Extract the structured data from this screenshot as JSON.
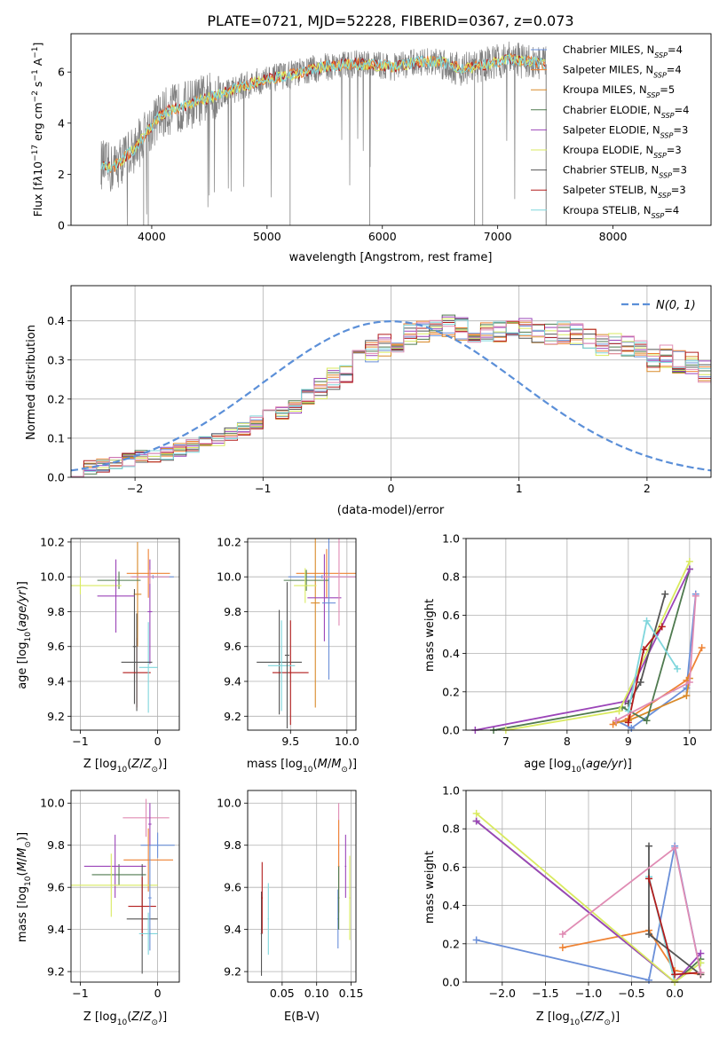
{
  "figure_title": "PLATE=0721, MJD=52228, FIBERID=0367, z=0.073",
  "colors": {
    "Chabrier MILES": "#6a8fd8",
    "Salpeter MILES": "#ee8233",
    "Kroupa MILES": "#d98a2a",
    "Chabrier ELODIE": "#4f7a4f",
    "Salpeter ELODIE": "#9b44b8",
    "Kroupa ELODIE": "#d9ea60",
    "Chabrier STELIB": "#555555",
    "Salpeter STELIB": "#b21d1d",
    "Kroupa STELIB": "#7fd6dc",
    "gray": "#808080",
    "gauss": "#5b8fd8",
    "pink": "#e08cb4"
  },
  "chart_data": [
    {
      "id": "spectrum",
      "type": "line",
      "title": "PLATE=0721, MJD=52228, FIBERID=0367, z=0.073",
      "xlabel": "wavelength [Angstrom, rest frame]",
      "ylabel": "Flux [f_λ 10^-17 erg cm^-2 s^-1 A^-1]",
      "xlim": [
        3300,
        8850
      ],
      "ylim": [
        0,
        7.5
      ],
      "xticks": [
        4000,
        5000,
        6000,
        7000,
        8000
      ],
      "yticks": [
        0,
        2,
        4,
        6
      ],
      "grid": false,
      "legend_position": "right",
      "legend": [
        "Chabrier MILES, N_SSP=4",
        "Salpeter MILES, N_SSP=4",
        "Kroupa MILES, N_SSP=5",
        "Chabrier ELODIE, N_SSP=4",
        "Salpeter ELODIE, N_SSP=3",
        "Kroupa ELODIE, N_SSP=3",
        "Chabrier STELIB, N_SSP=3",
        "Salpeter STELIB, N_SSP=3",
        "Kroupa STELIB, N_SSP=4"
      ],
      "continuum": {
        "x": [
          3560,
          3650,
          3750,
          3850,
          3950,
          4050,
          4150,
          4300,
          4500,
          4700,
          4900,
          5100,
          5300,
          5500,
          5700,
          5900,
          6100,
          6300,
          6500,
          6700,
          6900,
          7100,
          7300,
          7420
        ],
        "y": [
          2.4,
          2.2,
          2.6,
          3.0,
          3.6,
          4.2,
          4.5,
          4.7,
          5.0,
          5.3,
          5.6,
          5.8,
          6.0,
          6.2,
          6.3,
          6.3,
          6.2,
          6.4,
          6.4,
          6.1,
          6.3,
          6.5,
          6.4,
          6.3
        ]
      }
    },
    {
      "id": "residuals",
      "type": "histogram",
      "xlabel": "(data-model)/error",
      "ylabel": "Normed distribution",
      "xlim": [
        -2.5,
        2.5
      ],
      "ylim": [
        0,
        0.49
      ],
      "xticks": [
        -2,
        -1,
        0,
        1,
        2
      ],
      "yticks": [
        0.0,
        0.1,
        0.2,
        0.3,
        0.4
      ],
      "grid": true,
      "legend_position": "top-right",
      "legend": [
        "N(0,1)"
      ],
      "bin_width": 0.1,
      "bin_start": -2.5,
      "base_profile": [
        0.02,
        0.026,
        0.03,
        0.036,
        0.045,
        0.052,
        0.057,
        0.061,
        0.07,
        0.08,
        0.091,
        0.098,
        0.11,
        0.125,
        0.14,
        0.155,
        0.165,
        0.18,
        0.205,
        0.228,
        0.25,
        0.27,
        0.3,
        0.32,
        0.34,
        0.35,
        0.365,
        0.375,
        0.38,
        0.385,
        0.38,
        0.372,
        0.368,
        0.37,
        0.38,
        0.378,
        0.372,
        0.37,
        0.368,
        0.365,
        0.36,
        0.34,
        0.34,
        0.335,
        0.32,
        0.3,
        0.31,
        0.295,
        0.29,
        0.27,
        0.25,
        0.235,
        0.22,
        0.205,
        0.19,
        0.17,
        0.155,
        0.145,
        0.135,
        0.118,
        0.105,
        0.097,
        0.09,
        0.083,
        0.08,
        0.075,
        0.068,
        0.058,
        0.052,
        0.048,
        0.045,
        0.043,
        0.04,
        0.037,
        0.035,
        0.033,
        0.03,
        0.03,
        0.03,
        0.03
      ]
    },
    {
      "id": "age_vs_Z",
      "type": "errorbar",
      "xlabel": "Z [log10(Z/Z⊙)]",
      "ylabel": "age [log10(age/yr)]",
      "xlim": [
        -1.12,
        0.28
      ],
      "ylim": [
        9.12,
        10.22
      ],
      "xticks": [
        -1,
        0
      ],
      "yticks": [
        9.2,
        9.4,
        9.6,
        9.8,
        10.0,
        10.2
      ],
      "grid": true,
      "points": [
        {
          "series": "Chabrier MILES",
          "x": -0.06,
          "y": 10.0,
          "xerr": 0.27,
          "yerr": 0.01
        },
        {
          "series": "Salpeter MILES",
          "x": -0.12,
          "y": 10.02,
          "xerr": 0.28,
          "yerr": 0.14
        },
        {
          "series": "Kroupa MILES",
          "x": -0.26,
          "y": 9.9,
          "xerr": 0.05,
          "yerr": 0.3
        },
        {
          "series": "Chabrier ELODIE",
          "x": -0.5,
          "y": 9.98,
          "xerr": 0.28,
          "yerr": 0.05
        },
        {
          "series": "Salpeter ELODIE",
          "x": -0.1,
          "y": 9.8,
          "xerr": 0.03,
          "yerr": 0.3
        },
        {
          "series": "Kroupa ELODIE",
          "x": -1.0,
          "y": 9.95,
          "xerr": 0.53,
          "yerr": 0.05
        },
        {
          "series": "Chabrier STELIB",
          "x": -0.3,
          "y": 9.6,
          "xerr": 0.02,
          "yerr": 0.33
        },
        {
          "series": "Salpeter STELIB",
          "x": -0.27,
          "y": 9.45,
          "xerr": 0.18,
          "yerr": 0.2
        },
        {
          "series": "Kroupa STELIB",
          "x": -0.12,
          "y": 9.48,
          "xerr": 0.12,
          "yerr": 0.26
        },
        {
          "series": "Salpeter ELODIE",
          "x": -0.54,
          "y": 9.89,
          "xerr": 0.24,
          "yerr": 0.21
        },
        {
          "series": "Chabrier STELIB",
          "x": -0.27,
          "y": 9.51,
          "xerr": 0.2,
          "yerr": 0.28
        },
        {
          "series": "pink",
          "x": -0.1,
          "y": 10.0,
          "xerr": 0.25,
          "yerr": 0.04
        }
      ]
    },
    {
      "id": "age_vs_mass",
      "type": "errorbar",
      "xlabel": "mass [log10(M/M⊙)]",
      "xlim": [
        9.12,
        10.08
      ],
      "ylim": [
        9.12,
        10.22
      ],
      "xticks": [
        9.5,
        10.0
      ],
      "yticks": [
        9.2,
        9.4,
        9.6,
        9.8,
        10.0,
        10.2
      ],
      "grid": true,
      "points": [
        {
          "series": "Chabrier MILES",
          "x": 9.78,
          "y": 10.0,
          "xerr": 0.3,
          "yerr": 0.01
        },
        {
          "series": "Salpeter MILES",
          "x": 9.82,
          "y": 10.02,
          "xerr": 0.27,
          "yerr": 0.14
        },
        {
          "series": "Kroupa MILES",
          "x": 9.72,
          "y": 9.85,
          "xerr": 0.04,
          "yerr": 0.6
        },
        {
          "series": "Chabrier ELODIE",
          "x": 9.64,
          "y": 9.98,
          "xerr": 0.2,
          "yerr": 0.06
        },
        {
          "series": "Salpeter ELODIE",
          "x": 9.8,
          "y": 9.88,
          "xerr": 0.15,
          "yerr": 0.25
        },
        {
          "series": "Kroupa ELODIE",
          "x": 9.63,
          "y": 9.95,
          "xerr": 0.1,
          "yerr": 0.1
        },
        {
          "series": "Chabrier STELIB",
          "x": 9.4,
          "y": 9.51,
          "xerr": 0.2,
          "yerr": 0.3
        },
        {
          "series": "Salpeter STELIB",
          "x": 9.5,
          "y": 9.45,
          "xerr": 0.16,
          "yerr": 0.3
        },
        {
          "series": "Kroupa STELIB",
          "x": 9.42,
          "y": 9.49,
          "xerr": 0.12,
          "yerr": 0.26
        },
        {
          "series": "Chabrier MILES",
          "x": 9.84,
          "y": 9.85,
          "xerr": 0.06,
          "yerr": 0.44
        },
        {
          "series": "pink",
          "x": 9.93,
          "y": 10.0,
          "xerr": 0.15,
          "yerr": 0.28
        },
        {
          "series": "Chabrier STELIB",
          "x": 9.47,
          "y": 9.55,
          "xerr": 0.02,
          "yerr": 0.42
        }
      ]
    },
    {
      "id": "mass_weight_vs_age",
      "type": "line",
      "xlabel": "age [log10(age/yr)]",
      "ylabel": "mass weight",
      "xlim": [
        6.35,
        10.35
      ],
      "ylim": [
        0,
        1.0
      ],
      "xticks": [
        7,
        8,
        9,
        10
      ],
      "yticks": [
        0.0,
        0.2,
        0.4,
        0.6,
        0.8,
        1.0
      ],
      "grid": true,
      "series": [
        {
          "name": "Chabrier MILES",
          "x": [
            8.8,
            9.05,
            9.95,
            10.1
          ],
          "y": [
            0.05,
            0.01,
            0.22,
            0.71
          ]
        },
        {
          "name": "Salpeter MILES",
          "x": [
            8.75,
            9.0,
            9.95,
            10.2
          ],
          "y": [
            0.03,
            0.06,
            0.26,
            0.43
          ]
        },
        {
          "name": "Kroupa MILES",
          "x": [
            8.8,
            9.0,
            9.95,
            10.0
          ],
          "y": [
            0.04,
            0.05,
            0.18,
            0.27
          ]
        },
        {
          "name": "Chabrier ELODIE",
          "x": [
            6.8,
            8.9,
            9.3,
            10.0
          ],
          "y": [
            0.0,
            0.12,
            0.05,
            0.84
          ]
        },
        {
          "name": "Salpeter ELODIE",
          "x": [
            6.5,
            8.95,
            10.0
          ],
          "y": [
            0.0,
            0.15,
            0.84
          ]
        },
        {
          "name": "Kroupa ELODIE",
          "x": [
            7.0,
            8.85,
            10.0
          ],
          "y": [
            0.0,
            0.1,
            0.88
          ]
        },
        {
          "name": "Chabrier STELIB",
          "x": [
            9.0,
            9.2,
            9.6
          ],
          "y": [
            0.14,
            0.25,
            0.71
          ]
        },
        {
          "name": "Salpeter STELIB",
          "x": [
            9.0,
            9.25,
            9.55
          ],
          "y": [
            0.04,
            0.42,
            0.54
          ]
        },
        {
          "name": "Kroupa STELIB",
          "x": [
            9.0,
            9.3,
            9.8
          ],
          "y": [
            0.1,
            0.57,
            0.32
          ]
        },
        {
          "name": "pink",
          "x": [
            8.8,
            10.0,
            10.1
          ],
          "y": [
            0.05,
            0.25,
            0.7
          ]
        }
      ]
    },
    {
      "id": "mass_vs_Z",
      "type": "errorbar",
      "xlabel": "Z [log10(Z/Z⊙)]",
      "ylabel": "mass [log10(M/M⊙)]",
      "xlim": [
        -1.12,
        0.28
      ],
      "ylim": [
        9.15,
        10.06
      ],
      "xticks": [
        -1,
        0
      ],
      "yticks": [
        9.2,
        9.4,
        9.6,
        9.8,
        10.0
      ],
      "grid": true,
      "points": [
        {
          "series": "Chabrier MILES",
          "x": 0.0,
          "y": 9.8,
          "xerr": 0.22,
          "yerr": 0.06
        },
        {
          "series": "Salpeter MILES",
          "x": -0.12,
          "y": 9.73,
          "xerr": 0.32,
          "yerr": 0.15
        },
        {
          "series": "pink",
          "x": -0.15,
          "y": 9.93,
          "xerr": 0.3,
          "yerr": 0.09
        },
        {
          "series": "Chabrier ELODIE",
          "x": -0.5,
          "y": 9.66,
          "xerr": 0.35,
          "yerr": 0.05
        },
        {
          "series": "Salpeter ELODIE",
          "x": -0.55,
          "y": 9.7,
          "xerr": 0.4,
          "yerr": 0.15
        },
        {
          "series": "Kroupa ELODIE",
          "x": -0.6,
          "y": 9.61,
          "xerr": 0.6,
          "yerr": 0.15
        },
        {
          "series": "Chabrier STELIB",
          "x": -0.2,
          "y": 9.45,
          "xerr": 0.2,
          "yerr": 0.26
        },
        {
          "series": "Salpeter STELIB",
          "x": -0.2,
          "y": 9.51,
          "xerr": 0.18,
          "yerr": 0.14
        },
        {
          "series": "Kroupa STELIB",
          "x": -0.12,
          "y": 9.38,
          "xerr": 0.12,
          "yerr": 0.1
        },
        {
          "series": "Salpeter ELODIE",
          "x": -0.1,
          "y": 9.9,
          "xerr": 0.02,
          "yerr": 0.1
        },
        {
          "series": "Chabrier MILES",
          "x": -0.1,
          "y": 9.55,
          "xerr": 0.02,
          "yerr": 0.25
        }
      ]
    },
    {
      "id": "mass_vs_ebv",
      "type": "errorbar",
      "xlabel": "E(B-V)",
      "xlim": [
        0.0,
        0.157
      ],
      "ylim": [
        9.15,
        10.06
      ],
      "xticks": [
        0.05,
        0.1,
        0.15
      ],
      "yticks": [
        9.2,
        9.4,
        9.6,
        9.8,
        10.0
      ],
      "grid": true,
      "points": [
        {
          "series": "Chabrier MILES",
          "x": 0.131,
          "y": 9.45,
          "xerr": 0.001,
          "yerr": 0.14
        },
        {
          "series": "pink",
          "x": 0.132,
          "y": 9.8,
          "xerr": 0.001,
          "yerr": 0.2
        },
        {
          "series": "Salpeter MILES",
          "x": 0.132,
          "y": 9.7,
          "xerr": 0.001,
          "yerr": 0.22
        },
        {
          "series": "Chabrier ELODIE",
          "x": 0.132,
          "y": 9.55,
          "xerr": 0.001,
          "yerr": 0.15
        },
        {
          "series": "Salpeter ELODIE",
          "x": 0.142,
          "y": 9.7,
          "xerr": 0.001,
          "yerr": 0.15
        },
        {
          "series": "Kroupa ELODIE",
          "x": 0.148,
          "y": 9.55,
          "xerr": 0.001,
          "yerr": 0.2
        },
        {
          "series": "Chabrier STELIB",
          "x": 0.02,
          "y": 9.38,
          "xerr": 0.001,
          "yerr": 0.2
        },
        {
          "series": "Salpeter STELIB",
          "x": 0.021,
          "y": 9.55,
          "xerr": 0.001,
          "yerr": 0.17
        },
        {
          "series": "Kroupa STELIB",
          "x": 0.03,
          "y": 9.45,
          "xerr": 0.001,
          "yerr": 0.17
        }
      ]
    },
    {
      "id": "mass_weight_vs_Z",
      "type": "line",
      "xlabel": "Z [log10(Z/Z⊙)]",
      "ylabel": "mass weight",
      "xlim": [
        -2.42,
        0.42
      ],
      "ylim": [
        0,
        1.0
      ],
      "xticks": [
        -2.0,
        -1.5,
        -1.0,
        -0.5,
        0.0
      ],
      "yticks": [
        0.0,
        0.2,
        0.4,
        0.6,
        0.8,
        1.0
      ],
      "grid": true,
      "series": [
        {
          "name": "Chabrier MILES",
          "x": [
            -2.3,
            -0.3,
            0.0,
            0.3
          ],
          "y": [
            0.22,
            0.01,
            0.71,
            0.05
          ]
        },
        {
          "name": "Salpeter MILES",
          "x": [
            -1.3,
            -0.3,
            0.0,
            0.3
          ],
          "y": [
            0.18,
            0.27,
            0.06,
            0.04
          ]
        },
        {
          "name": "Kroupa STELIB",
          "x": [
            -0.3,
            0.0,
            0.3
          ],
          "y": [
            0.55,
            0.0,
            0.1
          ]
        },
        {
          "name": "Chabrier ELODIE",
          "x": [
            -2.3,
            0.0,
            0.3
          ],
          "y": [
            0.84,
            0.0,
            0.12
          ]
        },
        {
          "name": "Salpeter ELODIE",
          "x": [
            -2.3,
            0.0,
            0.3
          ],
          "y": [
            0.84,
            0.0,
            0.15
          ]
        },
        {
          "name": "Kroupa ELODIE",
          "x": [
            -2.3,
            0.0,
            0.3
          ],
          "y": [
            0.88,
            0.0,
            0.1
          ]
        },
        {
          "name": "Chabrier STELIB",
          "x": [
            -0.3,
            -0.3,
            0.3
          ],
          "y": [
            0.71,
            0.25,
            0.04
          ]
        },
        {
          "name": "Salpeter STELIB",
          "x": [
            -0.3,
            0.0,
            0.3
          ],
          "y": [
            0.54,
            0.04,
            0.05
          ]
        },
        {
          "name": "pink",
          "x": [
            -1.3,
            0.0,
            0.3
          ],
          "y": [
            0.25,
            0.7,
            0.05
          ]
        }
      ]
    }
  ]
}
